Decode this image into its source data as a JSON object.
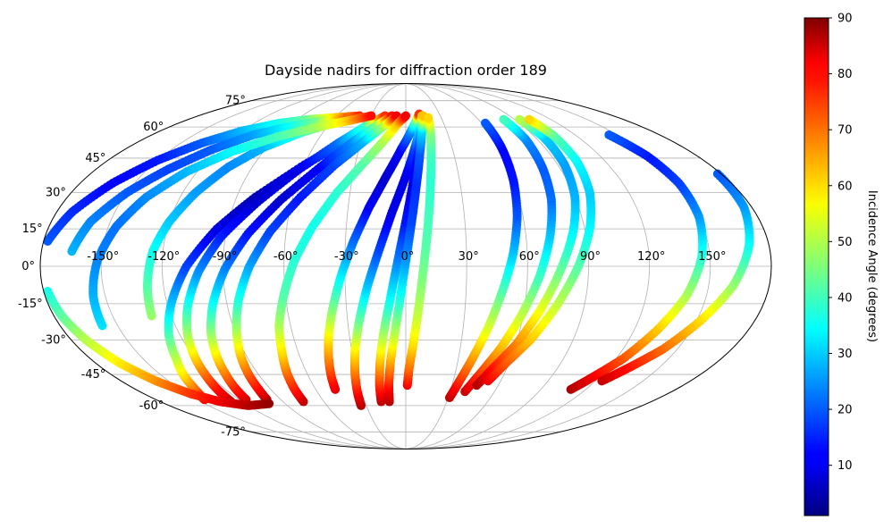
{
  "chart_data": {
    "type": "scatter",
    "projection": "mollweide",
    "title": "Dayside nadirs for diffraction order 189",
    "xlabel": "",
    "ylabel": "",
    "lon_ticks": [
      -150,
      -120,
      -90,
      -60,
      -30,
      0,
      30,
      60,
      90,
      120,
      150
    ],
    "lon_tick_labels": [
      "-150°",
      "-120°",
      "-90°",
      "-60°",
      "-30°",
      "0°",
      "30°",
      "60°",
      "90°",
      "120°",
      "150°"
    ],
    "lat_ticks": [
      75,
      60,
      45,
      30,
      15,
      0,
      -15,
      -30,
      -45,
      -60,
      -75
    ],
    "lat_tick_labels": [
      "75°",
      "60°",
      "45°",
      "30°",
      "15°",
      "0°",
      "-15°",
      "-30°",
      "-45°",
      "-60°",
      "-75°"
    ],
    "grid": true,
    "colorbar": {
      "label": "Incidence Angle (degrees)",
      "min": 1,
      "max": 90,
      "ticks": [
        10,
        20,
        30,
        40,
        50,
        60,
        70,
        80,
        90
      ],
      "tick_labels": [
        "10",
        "20",
        "30",
        "40",
        "50",
        "60",
        "70",
        "80",
        "90"
      ],
      "colormap": "jet"
    },
    "tracks": [
      {
        "name": "track-01",
        "lon": [
          -145,
          -142,
          -139,
          -136,
          -131,
          -126,
          -118,
          -108,
          -95,
          -80,
          -60,
          -40,
          -25,
          -15
        ],
        "lat": [
          -57,
          -54,
          -50,
          -45,
          -38,
          -28,
          -15,
          0,
          15,
          28,
          42,
          53,
          60,
          65
        ],
        "incidence": [
          80,
          75,
          68,
          60,
          52,
          42,
          30,
          18,
          10,
          6,
          12,
          22,
          35,
          60
        ]
      },
      {
        "name": "track-02",
        "lon": [
          -128,
          -126,
          -123,
          -120,
          -116,
          -110,
          -102,
          -92,
          -78,
          -62,
          -45,
          -30,
          -18
        ],
        "lat": [
          -58,
          -53,
          -46,
          -38,
          -28,
          -16,
          -2,
          12,
          26,
          40,
          52,
          61,
          66
        ],
        "incidence": [
          85,
          80,
          72,
          62,
          50,
          38,
          25,
          15,
          8,
          10,
          22,
          40,
          75
        ]
      },
      {
        "name": "track-03",
        "lon": [
          -115,
          -113,
          -110,
          -107,
          -103,
          -97,
          -89,
          -79,
          -66,
          -50,
          -35,
          -22,
          -12
        ],
        "lat": [
          -57,
          -52,
          -45,
          -37,
          -27,
          -15,
          -1,
          13,
          27,
          41,
          53,
          61,
          66
        ],
        "incidence": [
          84,
          78,
          70,
          60,
          48,
          36,
          24,
          14,
          8,
          12,
          25,
          45,
          78
        ]
      },
      {
        "name": "track-04",
        "lon": [
          -100,
          -98,
          -96,
          -93,
          -89,
          -84,
          -77,
          -68,
          -56,
          -42,
          -28,
          -16,
          -8
        ],
        "lat": [
          -57,
          -52,
          -45,
          -36,
          -26,
          -14,
          0,
          14,
          28,
          42,
          53,
          61,
          66
        ],
        "incidence": [
          86,
          80,
          72,
          62,
          50,
          38,
          27,
          18,
          14,
          18,
          28,
          50,
          80
        ]
      },
      {
        "name": "track-05",
        "lon": [
          -75,
          -74,
          -72,
          -69,
          -66,
          -61,
          -55,
          -47,
          -37,
          -25,
          -14,
          -6,
          0
        ],
        "lat": [
          -58,
          -52,
          -44,
          -35,
          -24,
          -12,
          2,
          16,
          30,
          43,
          54,
          62,
          66
        ],
        "incidence": [
          85,
          78,
          70,
          60,
          50,
          42,
          38,
          36,
          38,
          42,
          50,
          62,
          80
        ]
      },
      {
        "name": "track-06",
        "lon": [
          -47,
          -46,
          -44,
          -41,
          -37,
          -32,
          -26,
          -19,
          -11,
          -3,
          4,
          9,
          12
        ],
        "lat": [
          -52,
          -46,
          -38,
          -28,
          -17,
          -4,
          10,
          24,
          37,
          49,
          58,
          64,
          67
        ],
        "incidence": [
          82,
          76,
          68,
          58,
          46,
          34,
          22,
          12,
          8,
          12,
          24,
          45,
          75
        ]
      },
      {
        "name": "track-07",
        "lon": [
          -34,
          -33,
          -31,
          -28,
          -24,
          -19,
          -13,
          -7,
          0,
          6,
          11,
          14
        ],
        "lat": [
          -60,
          -54,
          -45,
          -34,
          -22,
          -8,
          7,
          22,
          37,
          50,
          60,
          66
        ],
        "incidence": [
          86,
          80,
          70,
          58,
          44,
          30,
          18,
          10,
          10,
          18,
          35,
          70
        ]
      },
      {
        "name": "track-08",
        "lon": [
          -18,
          -17,
          -15,
          -12,
          -8,
          -4,
          0,
          4,
          8,
          11,
          14
        ],
        "lat": [
          -58,
          -50,
          -40,
          -28,
          -14,
          2,
          18,
          34,
          48,
          59,
          66
        ],
        "incidence": [
          85,
          76,
          64,
          50,
          36,
          24,
          14,
          10,
          14,
          28,
          60
        ]
      },
      {
        "name": "track-09",
        "lon": [
          -12,
          -11,
          -9,
          -6,
          -3,
          0,
          3,
          6,
          9,
          12,
          15
        ],
        "lat": [
          -58,
          -50,
          -40,
          -28,
          -14,
          2,
          18,
          34,
          48,
          59,
          66
        ],
        "incidence": [
          86,
          78,
          66,
          52,
          38,
          26,
          18,
          16,
          20,
          32,
          62
        ]
      },
      {
        "name": "track-10",
        "lon": [
          1,
          2,
          4,
          6,
          8,
          10,
          12,
          14,
          16,
          18,
          19
        ],
        "lat": [
          -50,
          -42,
          -32,
          -20,
          -6,
          8,
          22,
          36,
          48,
          58,
          65
        ],
        "incidence": [
          80,
          70,
          60,
          52,
          46,
          42,
          40,
          38,
          40,
          46,
          60
        ]
      },
      {
        "name": "track-11",
        "lon": [
          31,
          34,
          38,
          43,
          48,
          53,
          57,
          60,
          62,
          63
        ],
        "lat": [
          -56,
          -48,
          -38,
          -25,
          -10,
          5,
          20,
          35,
          50,
          62
        ],
        "incidence": [
          85,
          76,
          66,
          54,
          42,
          30,
          20,
          14,
          12,
          20
        ]
      },
      {
        "name": "track-12",
        "lon": [
          40,
          45,
          52,
          59,
          66,
          72,
          77,
          80,
          82,
          81
        ],
        "lat": [
          -53,
          -45,
          -34,
          -20,
          -4,
          12,
          27,
          41,
          54,
          64
        ],
        "incidence": [
          84,
          75,
          64,
          52,
          40,
          30,
          22,
          20,
          24,
          40
        ]
      },
      {
        "name": "track-13",
        "lon": [
          46,
          52,
          60,
          68,
          76,
          84,
          90,
          94,
          96,
          94
        ],
        "lat": [
          -50,
          -42,
          -32,
          -18,
          -2,
          14,
          28,
          42,
          55,
          64
        ],
        "incidence": [
          86,
          78,
          68,
          56,
          44,
          34,
          28,
          26,
          30,
          50
        ]
      },
      {
        "name": "track-14",
        "lon": [
          52,
          58,
          67,
          76,
          85,
          93,
          99,
          103,
          104,
          102
        ],
        "lat": [
          -48,
          -40,
          -30,
          -16,
          0,
          16,
          30,
          44,
          56,
          64
        ],
        "incidence": [
          80,
          72,
          62,
          52,
          42,
          34,
          30,
          34,
          42,
          60
        ]
      },
      {
        "name": "track-15",
        "lon": [
          110,
          116,
          124,
          132,
          140,
          146,
          150,
          151,
          149,
          144
        ],
        "lat": [
          -52,
          -46,
          -38,
          -26,
          -12,
          4,
          20,
          34,
          46,
          56
        ],
        "incidence": [
          86,
          80,
          72,
          62,
          50,
          38,
          26,
          18,
          14,
          20
        ]
      },
      {
        "name": "track-16",
        "lon": [
          124,
          132,
          142,
          152,
          162,
          170,
          176,
          178
        ],
        "lat": [
          -48,
          -42,
          -34,
          -22,
          -8,
          8,
          24,
          38
        ],
        "incidence": [
          84,
          78,
          70,
          60,
          48,
          36,
          26,
          20
        ]
      },
      {
        "name": "track-17",
        "lon": [
          -178,
          -176,
          -172,
          -166,
          -158,
          -148,
          -136,
          -120,
          -102
        ],
        "lat": [
          -10,
          -20,
          -30,
          -40,
          -48,
          -54,
          -58,
          -60,
          -59
        ],
        "incidence": [
          36,
          42,
          50,
          58,
          66,
          74,
          80,
          85,
          88
        ]
      },
      {
        "name": "track-18",
        "lon": [
          -178,
          -172,
          -162,
          -150,
          -136,
          -120,
          -100,
          -80,
          -60,
          -40
        ],
        "lat": [
          10,
          22,
          34,
          44,
          52,
          58,
          62,
          64,
          65,
          66
        ],
        "incidence": [
          20,
          16,
          12,
          14,
          20,
          28,
          36,
          44,
          60,
          75
        ]
      },
      {
        "name": "track-19",
        "lon": [
          -165,
          -160,
          -150,
          -138,
          -124,
          -108,
          -90,
          -70,
          -50
        ],
        "lat": [
          6,
          18,
          30,
          40,
          49,
          56,
          60,
          63,
          65
        ],
        "incidence": [
          28,
          24,
          20,
          18,
          20,
          26,
          34,
          45,
          70
        ]
      },
      {
        "name": "track-20",
        "lon": [
          -130,
          -128,
          -125,
          -120,
          -113,
          -104,
          -92,
          -76,
          -58
        ],
        "lat": [
          -20,
          -8,
          6,
          18,
          30,
          41,
          50,
          57,
          62
        ],
        "incidence": [
          48,
          42,
          36,
          30,
          26,
          24,
          28,
          38,
          55
        ]
      },
      {
        "name": "track-21",
        "lon": [
          -158,
          -156,
          -152,
          -146,
          -138,
          -126,
          -110,
          -90,
          -68,
          -48,
          -30
        ],
        "lat": [
          -24,
          -12,
          2,
          16,
          28,
          39,
          48,
          55,
          60,
          63,
          66
        ],
        "incidence": [
          32,
          28,
          24,
          22,
          24,
          28,
          34,
          40,
          48,
          60,
          78
        ]
      }
    ]
  }
}
